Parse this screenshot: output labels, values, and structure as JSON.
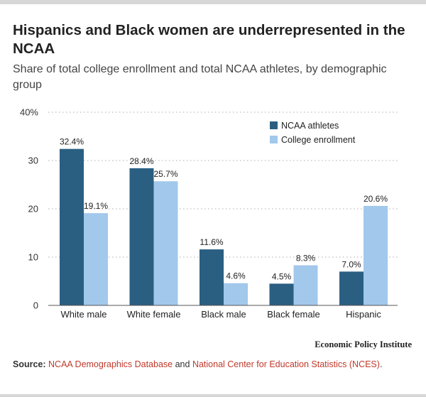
{
  "header": {
    "title": "Hispanics and Black women are underrepresented in the NCAA",
    "subtitle": "Share of total college enrollment and total NCAA athletes, by demographic group"
  },
  "footer": {
    "brand": "Economic Policy Institute",
    "source_label": "Source:",
    "source_link1": "NCAA Demographics Database",
    "source_and": " and ",
    "source_link2": "National Center for Education Statistics (NCES)",
    "source_end": "."
  },
  "colors": {
    "ncaa": "#2a5f82",
    "enrollment": "#a2c8eb",
    "grid": "#bdbdbd",
    "axis": "#555555"
  },
  "chart_data": {
    "type": "bar",
    "title": "Hispanics and Black women are underrepresented in the NCAA",
    "subtitle": "Share of total college enrollment and total NCAA athletes, by demographic group",
    "categories": [
      "White male",
      "White female",
      "Black male",
      "Black female",
      "Hispanic"
    ],
    "series": [
      {
        "name": "NCAA athletes",
        "values": [
          32.4,
          28.4,
          11.6,
          4.5,
          7.0
        ],
        "labels": [
          "32.4%",
          "28.4%",
          "11.6%",
          "4.5%",
          "7.0%"
        ]
      },
      {
        "name": "College enrollment",
        "values": [
          19.1,
          25.7,
          4.6,
          8.3,
          20.6
        ],
        "labels": [
          "19.1%",
          "25.7%",
          "4.6%",
          "8.3%",
          "20.6%"
        ]
      }
    ],
    "ylim": [
      0,
      40
    ],
    "yticks": [
      0,
      10,
      20,
      30,
      40
    ],
    "ytick_labels": [
      "0",
      "10",
      "20",
      "30",
      "40%"
    ],
    "grid": true,
    "legend": "top-right"
  }
}
